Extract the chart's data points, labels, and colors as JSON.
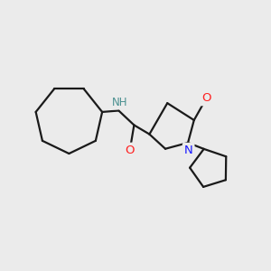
{
  "background_color": "#ebebeb",
  "bond_color": "#1a1a1a",
  "N_color": "#1919ff",
  "O_color": "#ff2020",
  "NH_color": "#4a9090",
  "line_width": 1.6,
  "figsize": [
    3.0,
    3.0
  ],
  "dpi": 100,
  "xlim": [
    0,
    10
  ],
  "ylim": [
    0,
    10
  ]
}
